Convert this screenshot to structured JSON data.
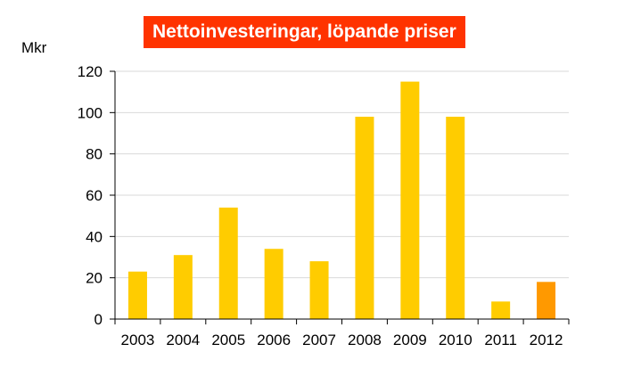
{
  "chart_data": {
    "type": "bar",
    "title": "Nettoinvesteringar, löpande priser",
    "ylabel": "Mkr",
    "xlabel": "",
    "categories": [
      "2003",
      "2004",
      "2005",
      "2006",
      "2007",
      "2008",
      "2009",
      "2010",
      "2011",
      "2012"
    ],
    "values": [
      23,
      31,
      54,
      34,
      28,
      98,
      115,
      98,
      8.5,
      18
    ],
    "ylim": [
      0,
      120
    ],
    "yticks": [
      "0",
      "20",
      "40",
      "60",
      "80",
      "100",
      "120"
    ],
    "grid": true,
    "colors": {
      "bar": "#FFCC00",
      "highlight_bar": "#FF9900",
      "highlight_category": "2012",
      "title_background": "#FF3300",
      "grid": "#D9D9D9"
    }
  }
}
